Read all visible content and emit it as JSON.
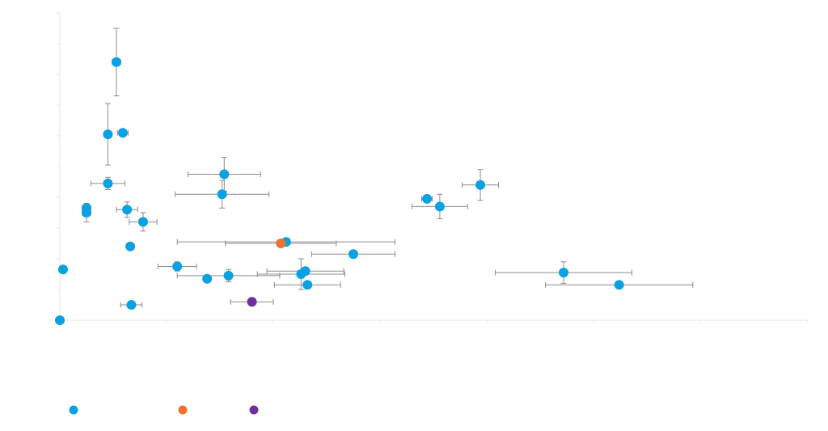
{
  "chart_data": {
    "type": "scatter",
    "title": "",
    "xlabel": "",
    "ylabel": "",
    "xlim": [
      0,
      35
    ],
    "ylim": [
      0,
      10
    ],
    "grid": false,
    "legend": "bottom-left",
    "error_bar_color": "#8c8c8c",
    "series": [
      {
        "name": "",
        "color": "#0aa1e2",
        "points": [
          {
            "x": 0.0,
            "y": 0.0
          },
          {
            "x": 0.15,
            "y": 1.65
          },
          {
            "x": 1.25,
            "y": 3.5,
            "xerr": 0.2,
            "yerr": 0.3
          },
          {
            "x": 1.25,
            "y": 3.65,
            "xerr": 0.2,
            "yerr": 0.15
          },
          {
            "x": 2.25,
            "y": 6.05,
            "yerr": 1.0
          },
          {
            "x": 2.25,
            "y": 4.45,
            "xerr": 0.8,
            "yerr": 0.2
          },
          {
            "x": 2.65,
            "y": 8.4,
            "xerr": 0.2,
            "yerr": 1.1
          },
          {
            "x": 2.95,
            "y": 6.1,
            "xerr": 0.25
          },
          {
            "x": 3.15,
            "y": 3.6,
            "xerr": 0.5,
            "yerr": 0.25
          },
          {
            "x": 3.3,
            "y": 2.4
          },
          {
            "x": 3.35,
            "y": 0.5,
            "xerr": 0.5
          },
          {
            "x": 3.9,
            "y": 3.2,
            "xerr": 0.65,
            "yerr": 0.3
          },
          {
            "x": 5.5,
            "y": 1.75,
            "xerr": 0.9,
            "yerr": 0.15
          },
          {
            "x": 6.9,
            "y": 1.35
          },
          {
            "x": 7.6,
            "y": 4.1,
            "xerr": 2.2,
            "yerr": 0.45
          },
          {
            "x": 7.7,
            "y": 4.75,
            "xerr": 1.7,
            "yerr": 0.55
          },
          {
            "x": 7.9,
            "y": 1.45,
            "xerr": 2.4,
            "yerr": 0.2
          },
          {
            "x": 10.6,
            "y": 2.55,
            "xerr": 5.1
          },
          {
            "x": 11.3,
            "y": 1.5,
            "xerr": 2.05,
            "yerr": 0.5
          },
          {
            "x": 11.5,
            "y": 1.6,
            "xerr": 1.8
          },
          {
            "x": 11.6,
            "y": 1.15,
            "xerr": 1.55
          },
          {
            "x": 13.75,
            "y": 2.15,
            "xerr": 1.95
          },
          {
            "x": 17.2,
            "y": 3.95,
            "xerr": 0.25
          },
          {
            "x": 17.8,
            "y": 3.7,
            "xerr": 1.3,
            "yerr": 0.4
          },
          {
            "x": 19.7,
            "y": 4.4,
            "xerr": 0.85,
            "yerr": 0.5
          },
          {
            "x": 23.6,
            "y": 1.55,
            "xerr": 3.2,
            "yerr": 0.35
          },
          {
            "x": 26.2,
            "y": 1.15,
            "xerr": 3.45
          }
        ]
      },
      {
        "name": "",
        "color": "#f07030",
        "points": [
          {
            "x": 10.35,
            "y": 2.5,
            "xerr": 2.6
          }
        ]
      },
      {
        "name": "",
        "color": "#7030a0",
        "points": [
          {
            "x": 9.0,
            "y": 0.6,
            "xerr": 1.0
          }
        ]
      }
    ]
  }
}
